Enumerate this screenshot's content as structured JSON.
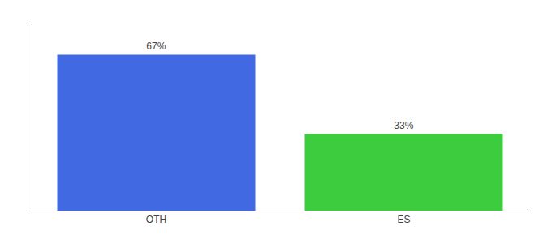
{
  "chart_data": {
    "type": "bar",
    "categories": [
      "OTH",
      "ES"
    ],
    "values": [
      67,
      33
    ],
    "value_labels": [
      "67%",
      "33%"
    ],
    "colors": [
      "#4169e1",
      "#3dcc3d"
    ],
    "ylim": [
      0,
      80
    ],
    "yticks": [],
    "tick_labels": "x",
    "data_labels": true,
    "grid": false
  }
}
